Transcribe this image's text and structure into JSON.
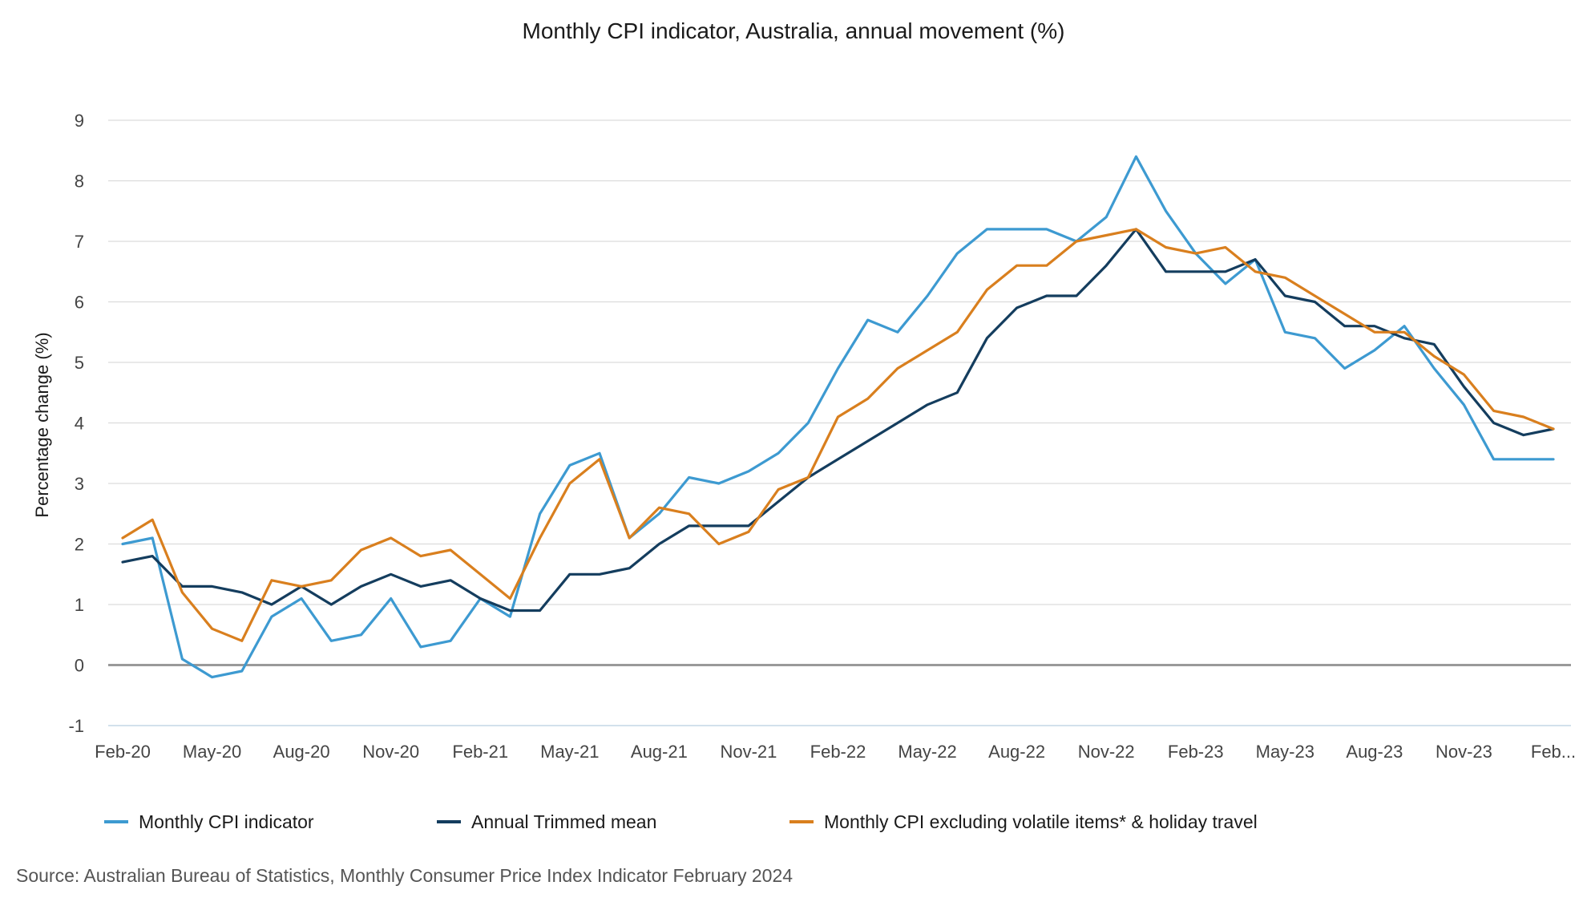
{
  "chart_data": {
    "type": "line",
    "title": "Monthly CPI indicator, Australia, annual movement (%)",
    "xlabel": "",
    "ylabel": "Percentage change (%)",
    "ylim": [
      -1,
      9
    ],
    "yticks": [
      -1,
      0,
      1,
      2,
      3,
      4,
      5,
      6,
      7,
      8,
      9
    ],
    "x_tick_labels": [
      "Feb-20",
      "May-20",
      "Aug-20",
      "Nov-20",
      "Feb-21",
      "May-21",
      "Aug-21",
      "Nov-21",
      "Feb-22",
      "May-22",
      "Aug-22",
      "Nov-22",
      "Feb-23",
      "May-23",
      "Aug-23",
      "Nov-23",
      "Feb..."
    ],
    "months": [
      "Feb-20",
      "Mar-20",
      "Apr-20",
      "May-20",
      "Jun-20",
      "Jul-20",
      "Aug-20",
      "Sep-20",
      "Oct-20",
      "Nov-20",
      "Dec-20",
      "Jan-21",
      "Feb-21",
      "Mar-21",
      "Apr-21",
      "May-21",
      "Jun-21",
      "Jul-21",
      "Aug-21",
      "Sep-21",
      "Oct-21",
      "Nov-21",
      "Dec-21",
      "Jan-22",
      "Feb-22",
      "Mar-22",
      "Apr-22",
      "May-22",
      "Jun-22",
      "Jul-22",
      "Aug-22",
      "Sep-22",
      "Oct-22",
      "Nov-22",
      "Dec-22",
      "Jan-23",
      "Feb-23",
      "Mar-23",
      "Apr-23",
      "May-23",
      "Jun-23",
      "Jul-23",
      "Aug-23",
      "Sep-23",
      "Oct-23",
      "Nov-23",
      "Dec-23",
      "Jan-24",
      "Feb-24"
    ],
    "series": [
      {
        "name": "Monthly CPI indicator",
        "color": "#3d9ad1",
        "values": [
          2.0,
          2.1,
          0.1,
          -0.2,
          -0.1,
          0.8,
          1.1,
          0.4,
          0.5,
          1.1,
          0.3,
          0.4,
          1.1,
          0.8,
          2.5,
          3.3,
          3.5,
          2.1,
          2.5,
          3.1,
          3.0,
          3.2,
          3.5,
          4.0,
          4.9,
          5.7,
          5.5,
          6.1,
          6.8,
          7.2,
          7.2,
          7.2,
          7.0,
          7.4,
          8.4,
          7.5,
          6.8,
          6.3,
          6.7,
          5.5,
          5.4,
          4.9,
          5.2,
          5.6,
          4.9,
          4.3,
          3.4,
          3.4,
          3.4
        ]
      },
      {
        "name": "Annual Trimmed mean",
        "color": "#143d5e",
        "values": [
          1.7,
          1.8,
          1.3,
          1.3,
          1.2,
          1.0,
          1.3,
          1.0,
          1.3,
          1.5,
          1.3,
          1.4,
          1.1,
          0.9,
          0.9,
          1.5,
          1.5,
          1.6,
          2.0,
          2.3,
          2.3,
          2.3,
          2.7,
          3.1,
          3.4,
          3.7,
          4.0,
          4.3,
          4.5,
          5.4,
          5.9,
          6.1,
          6.1,
          6.6,
          7.2,
          6.5,
          6.5,
          6.5,
          6.7,
          6.1,
          6.0,
          5.6,
          5.6,
          5.4,
          5.3,
          4.6,
          4.0,
          3.8,
          3.9
        ]
      },
      {
        "name": "Monthly CPI excluding volatile items* & holiday travel",
        "color": "#d97f1e",
        "values": [
          2.1,
          2.4,
          1.2,
          0.6,
          0.4,
          1.4,
          1.3,
          1.4,
          1.9,
          2.1,
          1.8,
          1.9,
          1.5,
          1.1,
          2.1,
          3.0,
          3.4,
          2.1,
          2.6,
          2.5,
          2.0,
          2.2,
          2.9,
          3.1,
          4.1,
          4.4,
          4.9,
          5.2,
          5.5,
          6.2,
          6.6,
          6.6,
          7.0,
          7.1,
          7.2,
          6.9,
          6.8,
          6.9,
          6.5,
          6.4,
          6.1,
          5.8,
          5.5,
          5.5,
          5.1,
          4.8,
          4.2,
          4.1,
          3.9
        ]
      }
    ],
    "legend_position": "bottom",
    "source": "Source: Australian Bureau of Statistics, Monthly Consumer Price Index Indicator February 2024"
  }
}
